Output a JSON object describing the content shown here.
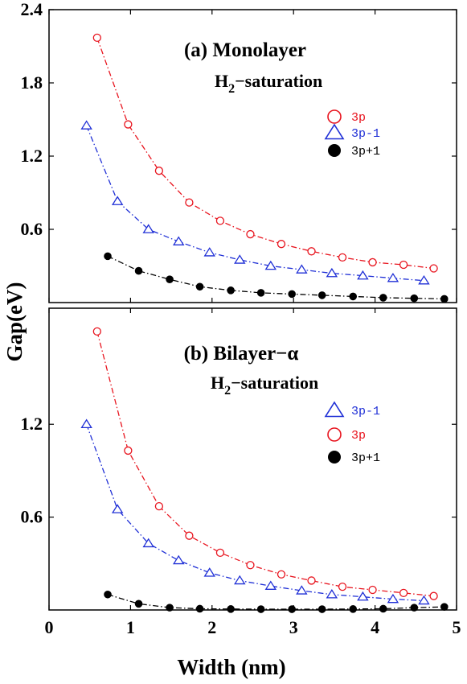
{
  "xlabel": "Width (nm)",
  "ylabel": "Gap(eV)",
  "x_ticks": [
    "0",
    "1",
    "2",
    "3",
    "4",
    "5"
  ],
  "colors": {
    "3p": "#e8141e",
    "3p-1": "#1f2fd6",
    "3p+1": "#000000"
  },
  "chart_data": [
    {
      "type": "line",
      "panel": "top",
      "title": "(a)  Monolayer",
      "subtitle": {
        "main": "H",
        "sub": "2",
        "rest": "−saturation"
      },
      "xlim": [
        0,
        5
      ],
      "ylim": [
        0,
        2.4
      ],
      "y_ticks": [
        "0.6",
        "1.2",
        "1.8",
        "2.4"
      ],
      "grid": false,
      "legend_position": "right-upper",
      "legend_order": [
        "3p",
        "3p-1",
        "3p+1"
      ],
      "series": [
        {
          "name": "3p",
          "marker": "circle-open",
          "x": [
            0.59,
            0.97,
            1.35,
            1.72,
            2.1,
            2.47,
            2.85,
            3.22,
            3.6,
            3.97,
            4.35,
            4.72
          ],
          "y": [
            2.17,
            1.46,
            1.08,
            0.82,
            0.67,
            0.56,
            0.48,
            0.42,
            0.37,
            0.33,
            0.31,
            0.28
          ]
        },
        {
          "name": "3p-1",
          "marker": "triangle-open",
          "x": [
            0.46,
            0.84,
            1.22,
            1.59,
            1.97,
            2.34,
            2.72,
            3.1,
            3.47,
            3.85,
            4.22,
            4.6
          ],
          "y": [
            1.45,
            0.83,
            0.6,
            0.5,
            0.41,
            0.35,
            0.3,
            0.27,
            0.24,
            0.22,
            0.2,
            0.18
          ]
        },
        {
          "name": "3p+1",
          "marker": "circle-filled",
          "x": [
            0.72,
            1.1,
            1.48,
            1.85,
            2.23,
            2.6,
            2.98,
            3.35,
            3.73,
            4.1,
            4.48,
            4.85
          ],
          "y": [
            0.38,
            0.26,
            0.19,
            0.13,
            0.1,
            0.08,
            0.07,
            0.06,
            0.05,
            0.04,
            0.035,
            0.03
          ]
        }
      ]
    },
    {
      "type": "line",
      "panel": "bottom",
      "title": "(b)  Bilayer−α",
      "subtitle": {
        "main": "H",
        "sub": "2",
        "rest": "−saturation"
      },
      "xlim": [
        0,
        5
      ],
      "ylim": [
        0,
        1.95
      ],
      "y_ticks": [
        "0.6",
        "1.2"
      ],
      "grid": false,
      "legend_position": "right-middle",
      "legend_order": [
        "3p-1",
        "3p",
        "3p+1"
      ],
      "series": [
        {
          "name": "3p",
          "marker": "circle-open",
          "x": [
            0.59,
            0.97,
            1.35,
            1.72,
            2.1,
            2.47,
            2.85,
            3.22,
            3.6,
            3.97,
            4.35,
            4.72
          ],
          "y": [
            1.8,
            1.03,
            0.67,
            0.48,
            0.37,
            0.29,
            0.23,
            0.19,
            0.15,
            0.13,
            0.11,
            0.09
          ]
        },
        {
          "name": "3p-1",
          "marker": "triangle-open",
          "x": [
            0.46,
            0.84,
            1.22,
            1.59,
            1.97,
            2.34,
            2.72,
            3.1,
            3.47,
            3.85,
            4.22,
            4.6
          ],
          "y": [
            1.2,
            0.65,
            0.43,
            0.32,
            0.24,
            0.19,
            0.155,
            0.125,
            0.1,
            0.085,
            0.07,
            0.06
          ]
        },
        {
          "name": "3p+1",
          "marker": "circle-filled",
          "x": [
            0.72,
            1.1,
            1.48,
            1.85,
            2.23,
            2.6,
            2.98,
            3.35,
            3.73,
            4.1,
            4.48,
            4.85
          ],
          "y": [
            0.1,
            0.04,
            0.015,
            0.008,
            0.006,
            0.005,
            0.005,
            0.005,
            0.006,
            0.008,
            0.015,
            0.02
          ]
        }
      ]
    }
  ]
}
